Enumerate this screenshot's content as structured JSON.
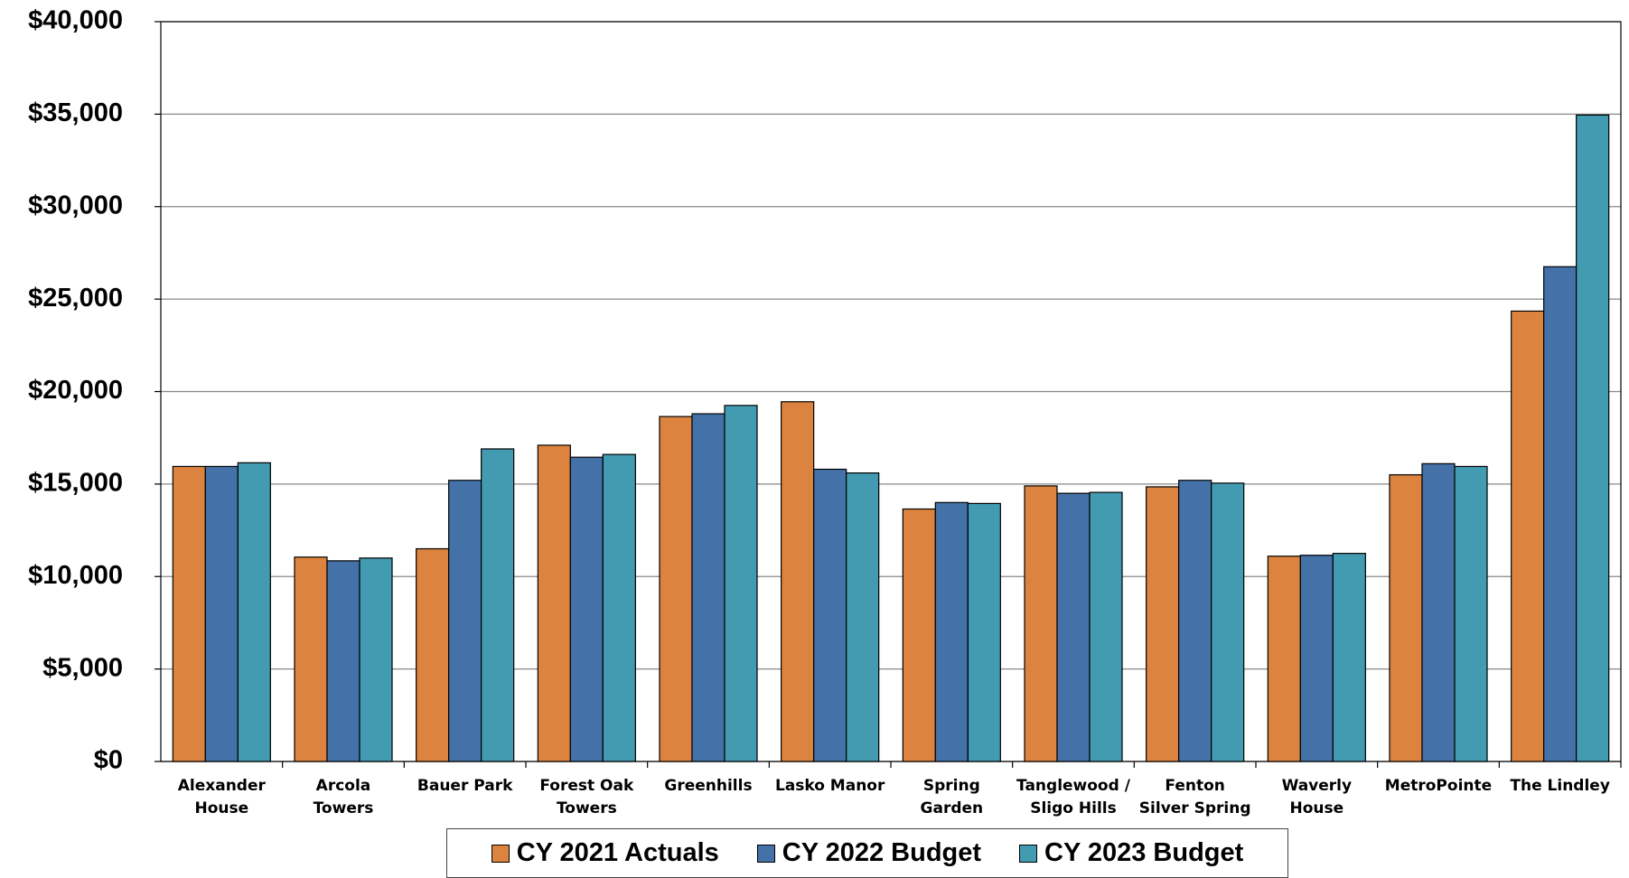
{
  "chart_data": {
    "type": "bar",
    "categories": [
      "Alexander House",
      "Arcola Towers",
      "Bauer Park",
      "Forest Oak Towers",
      "Greenhills",
      "Lasko Manor",
      "Spring Garden",
      "Tanglewood / Sligo Hills",
      "Fenton Silver Spring",
      "Waverly House",
      "MetroPointe",
      "The Lindley"
    ],
    "series": [
      {
        "name": "CY 2021 Actuals",
        "color": "#dc843f",
        "values": [
          15950,
          11050,
          11500,
          17100,
          18650,
          19450,
          13650,
          14900,
          14850,
          11100,
          15500,
          24350
        ]
      },
      {
        "name": "CY 2022 Budget",
        "color": "#4472a8",
        "values": [
          15950,
          10850,
          15200,
          16450,
          18800,
          15800,
          14000,
          14500,
          15200,
          11150,
          16100,
          26750
        ]
      },
      {
        "name": "CY 2023 Budget",
        "color": "#429bb0",
        "values": [
          16150,
          11000,
          16900,
          16600,
          19250,
          15600,
          13950,
          14550,
          15050,
          11250,
          15950,
          34950
        ]
      }
    ],
    "ylim": [
      0,
      40000
    ],
    "yticks": [
      {
        "value": 0,
        "label": "$0"
      },
      {
        "value": 5000,
        "label": "$5,000"
      },
      {
        "value": 10000,
        "label": "$10,000"
      },
      {
        "value": 15000,
        "label": "$15,000"
      },
      {
        "value": 20000,
        "label": "$20,000"
      },
      {
        "value": 25000,
        "label": "$25,000"
      },
      {
        "value": 30000,
        "label": "$30,000"
      },
      {
        "value": 35000,
        "label": "$35,000"
      },
      {
        "value": 40000,
        "label": "$40,000"
      }
    ],
    "grid": true,
    "legend": "bottom"
  }
}
